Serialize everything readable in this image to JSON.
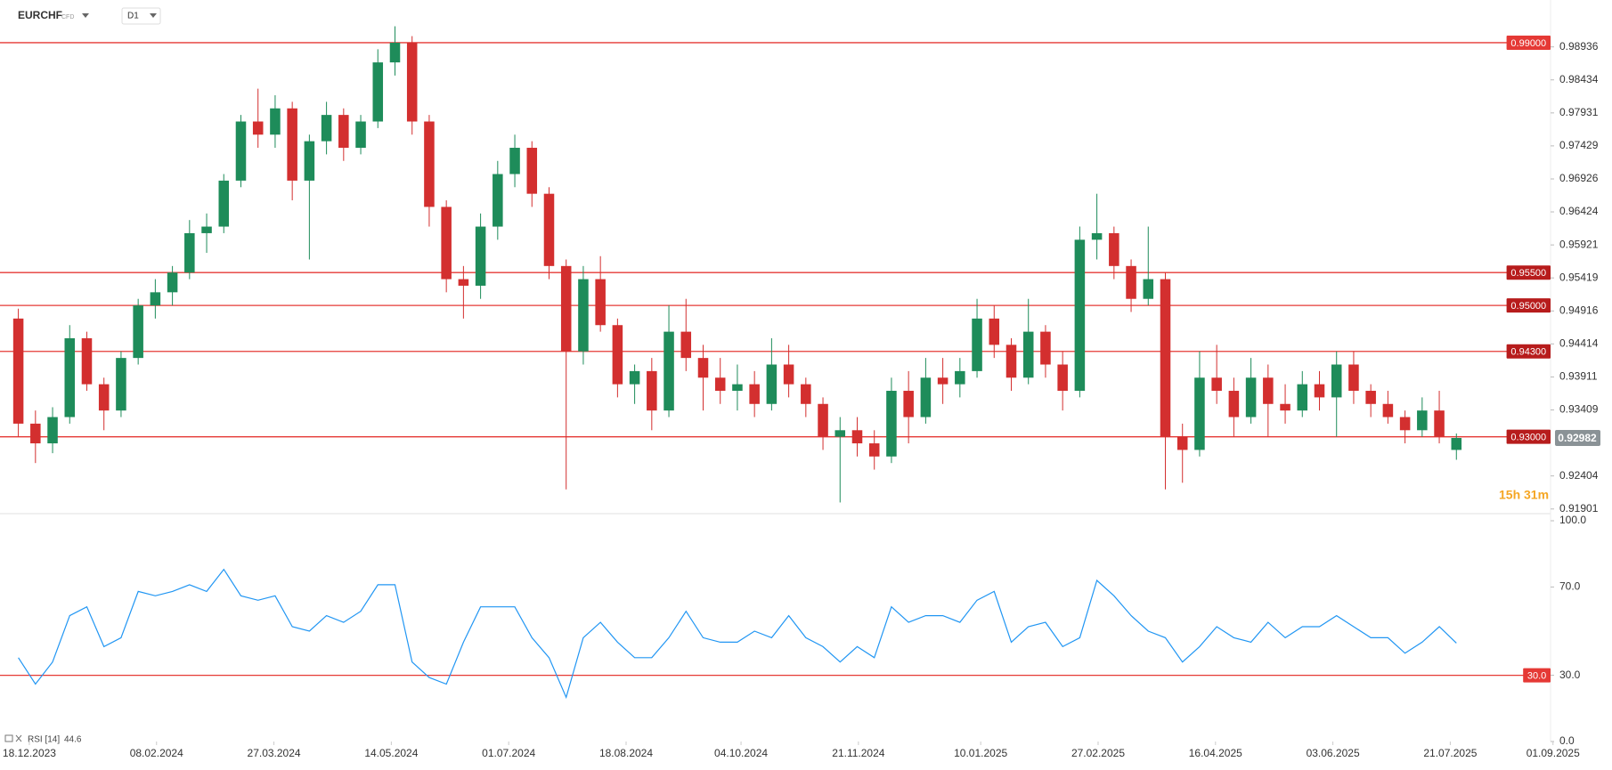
{
  "header": {
    "symbol": "EURCHF",
    "kind": "CFD",
    "timeframe": "D1"
  },
  "countdown": "15h 31m",
  "chart_data": [
    {
      "type": "candlestick",
      "x": [
        "2023-12-11",
        "2023-12-18",
        "2023-12-25",
        "2024-01-01",
        "2024-01-08",
        "2024-01-15",
        "2024-01-22",
        "2024-01-29",
        "2024-02-05",
        "2024-02-12",
        "2024-02-19",
        "2024-02-26",
        "2024-03-04",
        "2024-03-11",
        "2024-03-18",
        "2024-03-25",
        "2024-04-01",
        "2024-04-08",
        "2024-04-15",
        "2024-04-22",
        "2024-04-29",
        "2024-05-06",
        "2024-05-13",
        "2024-05-20",
        "2024-05-27",
        "2024-06-03",
        "2024-06-10",
        "2024-06-17",
        "2024-06-24",
        "2024-07-01",
        "2024-07-08",
        "2024-07-15",
        "2024-07-22",
        "2024-07-29",
        "2024-08-05",
        "2024-08-12",
        "2024-08-19",
        "2024-08-26",
        "2024-09-02",
        "2024-09-09",
        "2024-09-16",
        "2024-09-23",
        "2024-09-30",
        "2024-10-07",
        "2024-10-14",
        "2024-10-21",
        "2024-10-28",
        "2024-11-04",
        "2024-11-11",
        "2024-11-18",
        "2024-11-25",
        "2024-12-02",
        "2024-12-09",
        "2024-12-16",
        "2024-12-23",
        "2024-12-30",
        "2025-01-06",
        "2025-01-13",
        "2025-01-20",
        "2025-01-27",
        "2025-02-03",
        "2025-02-10",
        "2025-02-17",
        "2025-02-24",
        "2025-03-03",
        "2025-03-10",
        "2025-03-17",
        "2025-03-24",
        "2025-03-31",
        "2025-04-07",
        "2025-04-14",
        "2025-04-21",
        "2025-04-28",
        "2025-05-05",
        "2025-05-12",
        "2025-05-19",
        "2025-05-26",
        "2025-06-02",
        "2025-06-09",
        "2025-06-16",
        "2025-06-23",
        "2025-06-30",
        "2025-07-07",
        "2025-07-14",
        "2025-07-21"
      ],
      "open": [
        0.948,
        0.932,
        0.929,
        0.933,
        0.945,
        0.938,
        0.934,
        0.942,
        0.95,
        0.952,
        0.955,
        0.961,
        0.962,
        0.969,
        0.978,
        0.976,
        0.98,
        0.969,
        0.975,
        0.979,
        0.974,
        0.978,
        0.987,
        0.99,
        0.978,
        0.965,
        0.954,
        0.953,
        0.962,
        0.97,
        0.974,
        0.967,
        0.956,
        0.943,
        0.954,
        0.947,
        0.938,
        0.94,
        0.934,
        0.946,
        0.942,
        0.939,
        0.937,
        0.938,
        0.935,
        0.941,
        0.938,
        0.935,
        0.93,
        0.931,
        0.929,
        0.927,
        0.937,
        0.933,
        0.939,
        0.938,
        0.94,
        0.948,
        0.944,
        0.939,
        0.946,
        0.941,
        0.937,
        0.96,
        0.961,
        0.956,
        0.951,
        0.954,
        0.93,
        0.928,
        0.939,
        0.937,
        0.933,
        0.939,
        0.935,
        0.934,
        0.938,
        0.936,
        0.941,
        0.937,
        0.935,
        0.933,
        0.931,
        0.934,
        0.928
      ],
      "high": [
        0.9495,
        0.934,
        0.9345,
        0.947,
        0.946,
        0.939,
        0.943,
        0.951,
        0.954,
        0.956,
        0.963,
        0.964,
        0.97,
        0.979,
        0.983,
        0.982,
        0.981,
        0.976,
        0.981,
        0.98,
        0.979,
        0.989,
        0.9925,
        0.991,
        0.979,
        0.966,
        0.956,
        0.964,
        0.972,
        0.976,
        0.975,
        0.968,
        0.957,
        0.956,
        0.9575,
        0.948,
        0.941,
        0.942,
        0.95,
        0.951,
        0.944,
        0.942,
        0.941,
        0.94,
        0.945,
        0.944,
        0.939,
        0.936,
        0.933,
        0.933,
        0.931,
        0.939,
        0.94,
        0.942,
        0.942,
        0.942,
        0.951,
        0.95,
        0.945,
        0.951,
        0.947,
        0.943,
        0.962,
        0.967,
        0.962,
        0.957,
        0.962,
        0.955,
        0.932,
        0.943,
        0.944,
        0.939,
        0.942,
        0.941,
        0.938,
        0.94,
        0.94,
        0.943,
        0.943,
        0.938,
        0.937,
        0.934,
        0.936,
        0.937,
        0.9305
      ],
      "low": [
        0.93,
        0.926,
        0.9275,
        0.932,
        0.937,
        0.931,
        0.933,
        0.941,
        0.948,
        0.95,
        0.954,
        0.958,
        0.961,
        0.968,
        0.974,
        0.974,
        0.966,
        0.957,
        0.973,
        0.972,
        0.973,
        0.977,
        0.985,
        0.976,
        0.962,
        0.952,
        0.948,
        0.951,
        0.96,
        0.968,
        0.965,
        0.954,
        0.922,
        0.941,
        0.946,
        0.936,
        0.935,
        0.931,
        0.933,
        0.94,
        0.934,
        0.935,
        0.934,
        0.933,
        0.934,
        0.936,
        0.933,
        0.928,
        0.92,
        0.927,
        0.925,
        0.926,
        0.929,
        0.932,
        0.935,
        0.936,
        0.939,
        0.942,
        0.937,
        0.938,
        0.939,
        0.934,
        0.936,
        0.957,
        0.954,
        0.949,
        0.95,
        0.922,
        0.923,
        0.927,
        0.935,
        0.93,
        0.932,
        0.93,
        0.932,
        0.933,
        0.934,
        0.93,
        0.935,
        0.933,
        0.932,
        0.929,
        0.93,
        0.929,
        0.9265
      ],
      "close": [
        0.932,
        0.929,
        0.933,
        0.945,
        0.938,
        0.934,
        0.942,
        0.95,
        0.952,
        0.955,
        0.961,
        0.962,
        0.969,
        0.978,
        0.976,
        0.98,
        0.969,
        0.975,
        0.979,
        0.974,
        0.978,
        0.987,
        0.99,
        0.978,
        0.965,
        0.954,
        0.953,
        0.962,
        0.97,
        0.974,
        0.967,
        0.956,
        0.943,
        0.954,
        0.947,
        0.938,
        0.94,
        0.934,
        0.946,
        0.942,
        0.939,
        0.937,
        0.938,
        0.935,
        0.941,
        0.938,
        0.935,
        0.93,
        0.931,
        0.929,
        0.927,
        0.937,
        0.933,
        0.939,
        0.938,
        0.94,
        0.948,
        0.944,
        0.939,
        0.946,
        0.941,
        0.937,
        0.96,
        0.961,
        0.956,
        0.951,
        0.954,
        0.93,
        0.928,
        0.939,
        0.937,
        0.933,
        0.939,
        0.935,
        0.934,
        0.938,
        0.936,
        0.941,
        0.937,
        0.935,
        0.933,
        0.931,
        0.934,
        0.93,
        0.92982
      ],
      "up_color": "#1e8c5a",
      "down_color": "#d32f2f",
      "xlim": [
        "2023-12-06",
        "2025-08-31"
      ],
      "ylim": [
        0.9183,
        0.9965
      ],
      "yticks": [
        0.91901,
        0.92404,
        0.93409,
        0.93911,
        0.94414,
        0.94916,
        0.95419,
        0.95921,
        0.96424,
        0.96926,
        0.97429,
        0.97931,
        0.98434,
        0.98936
      ],
      "levels": [
        {
          "value": 0.99,
          "label": "0.99000",
          "color": "#e53935"
        },
        {
          "value": 0.955,
          "label": "0.95500",
          "color": "#b71c1c"
        },
        {
          "value": 0.95,
          "label": "0.95000",
          "color": "#b71c1c"
        },
        {
          "value": 0.943,
          "label": "0.94300",
          "color": "#b71c1c"
        },
        {
          "value": 0.93,
          "label": "0.93000",
          "color": "#b71c1c"
        }
      ],
      "last": 0.92982,
      "grid": false
    },
    {
      "type": "line",
      "title": "RSI [14]",
      "current": 44.6,
      "color": "#2196f3",
      "x": [
        "2023-12-11",
        "2023-12-18",
        "2023-12-25",
        "2024-01-01",
        "2024-01-08",
        "2024-01-15",
        "2024-01-22",
        "2024-01-29",
        "2024-02-05",
        "2024-02-12",
        "2024-02-19",
        "2024-02-26",
        "2024-03-04",
        "2024-03-11",
        "2024-03-18",
        "2024-03-25",
        "2024-04-01",
        "2024-04-08",
        "2024-04-15",
        "2024-04-22",
        "2024-04-29",
        "2024-05-06",
        "2024-05-13",
        "2024-05-20",
        "2024-05-27",
        "2024-06-03",
        "2024-06-10",
        "2024-06-17",
        "2024-06-24",
        "2024-07-01",
        "2024-07-08",
        "2024-07-15",
        "2024-07-22",
        "2024-07-29",
        "2024-08-05",
        "2024-08-12",
        "2024-08-19",
        "2024-08-26",
        "2024-09-02",
        "2024-09-09",
        "2024-09-16",
        "2024-09-23",
        "2024-09-30",
        "2024-10-07",
        "2024-10-14",
        "2024-10-21",
        "2024-10-28",
        "2024-11-04",
        "2024-11-11",
        "2024-11-18",
        "2024-11-25",
        "2024-12-02",
        "2024-12-09",
        "2024-12-16",
        "2024-12-23",
        "2024-12-30",
        "2025-01-06",
        "2025-01-13",
        "2025-01-20",
        "2025-01-27",
        "2025-02-03",
        "2025-02-10",
        "2025-02-17",
        "2025-02-24",
        "2025-03-03",
        "2025-03-10",
        "2025-03-17",
        "2025-03-24",
        "2025-03-31",
        "2025-04-07",
        "2025-04-14",
        "2025-04-21",
        "2025-04-28",
        "2025-05-05",
        "2025-05-12",
        "2025-05-19",
        "2025-05-26",
        "2025-06-02",
        "2025-06-09",
        "2025-06-16",
        "2025-06-23",
        "2025-06-30",
        "2025-07-07",
        "2025-07-14",
        "2025-07-21"
      ],
      "values": [
        38,
        26,
        36,
        57,
        61,
        43,
        47,
        68,
        66,
        68,
        71,
        68,
        78,
        66,
        64,
        66,
        52,
        50,
        57,
        54,
        59,
        71,
        71,
        36,
        29,
        26,
        45,
        61,
        61,
        61,
        47,
        38,
        20,
        47,
        54,
        45,
        38,
        38,
        47,
        59,
        47,
        45,
        45,
        50,
        47,
        57,
        47,
        43,
        36,
        43,
        38,
        61,
        54,
        57,
        57,
        54,
        64,
        68,
        45,
        52,
        54,
        43,
        47,
        73,
        66,
        57,
        50,
        47,
        36,
        43,
        52,
        47,
        45,
        54,
        47,
        52,
        52,
        57,
        52,
        47,
        47,
        40,
        45,
        52,
        44.6
      ],
      "xlim": [
        "2023-12-06",
        "2025-08-31"
      ],
      "ylim": [
        0,
        100
      ],
      "yticks": [
        {
          "value": 0,
          "label": "0.0"
        },
        {
          "value": 30,
          "label": "30.0"
        },
        {
          "value": 70,
          "label": "70.0"
        },
        {
          "value": 100,
          "label": "100.0"
        }
      ],
      "levels": [
        {
          "value": 30,
          "label": "30.0",
          "color": "#e53935"
        }
      ],
      "xticks": [
        {
          "value": "2023-12-18",
          "label": "18.12.2023"
        },
        {
          "value": "2024-02-08",
          "label": "08.02.2024"
        },
        {
          "value": "2024-03-27",
          "label": "27.03.2024"
        },
        {
          "value": "2024-05-14",
          "label": "14.05.2024"
        },
        {
          "value": "2024-07-01",
          "label": "01.07.2024"
        },
        {
          "value": "2024-08-18",
          "label": "18.08.2024"
        },
        {
          "value": "2024-10-04",
          "label": "04.10.2024"
        },
        {
          "value": "2024-11-21",
          "label": "21.11.2024"
        },
        {
          "value": "2025-01-10",
          "label": "10.01.2025"
        },
        {
          "value": "2025-02-27",
          "label": "27.02.2025"
        },
        {
          "value": "2025-04-16",
          "label": "16.04.2025"
        },
        {
          "value": "2025-06-03",
          "label": "03.06.2025"
        },
        {
          "value": "2025-07-21",
          "label": "21.07.2025"
        },
        {
          "value": "2025-09-01",
          "label": "01.09.2025"
        }
      ],
      "grid": false
    }
  ]
}
